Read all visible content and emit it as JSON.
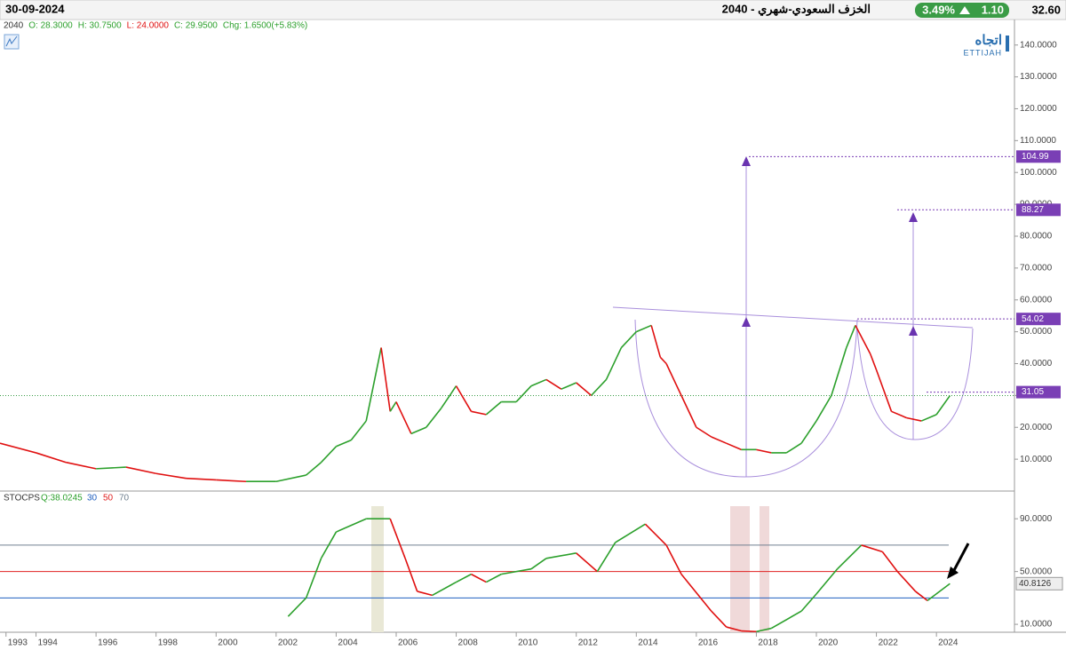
{
  "header": {
    "date": "30-09-2024",
    "title": "الخزف السعودي-شهري - 2040",
    "change_pct": "3.49%",
    "change": "1.10",
    "last": "32.60",
    "ohlc": [
      "2040",
      "O: 28.3000",
      "H: 30.7500",
      "L: 24.0000",
      "C: 29.9500",
      "Chg: 1.6500(+5.83%)"
    ],
    "logo": "اتجاه",
    "logo_sub": "ETTIJAH"
  },
  "chart_data": [
    {
      "type": "line",
      "name": "price",
      "x": [
        1992.8,
        1994,
        1995,
        1996,
        1997,
        1998,
        1999,
        2000,
        2001,
        2002,
        2003,
        2003.5,
        2004,
        2004.5,
        2005,
        2005.5,
        2005.8,
        2006,
        2006.5,
        2007,
        2007.5,
        2008,
        2008.5,
        2009,
        2009.5,
        2010,
        2010.5,
        2011,
        2011.5,
        2012,
        2012.5,
        2013,
        2013.5,
        2014,
        2014.5,
        2014.8,
        2015,
        2015.5,
        2016,
        2016.5,
        2017,
        2017.5,
        2018,
        2018.5,
        2019,
        2019.5,
        2020,
        2020.5,
        2021,
        2021.3,
        2021.8,
        2022,
        2022.5,
        2023,
        2023.5,
        2024,
        2024.45
      ],
      "values": [
        15,
        12,
        9,
        7,
        7.5,
        5.5,
        4,
        3.5,
        3,
        3,
        5,
        9,
        14,
        16,
        22,
        45,
        25,
        28,
        18,
        20,
        26,
        33,
        25,
        24,
        28,
        28,
        33,
        35,
        32,
        34,
        30,
        35,
        45,
        50,
        52,
        42,
        40,
        30,
        20,
        17,
        15,
        13,
        13,
        12,
        12,
        15,
        22,
        30,
        45,
        52,
        43,
        38,
        25,
        23,
        22,
        24,
        29.95
      ],
      "color_up": "#2ca02c",
      "color_down": "#e01010",
      "xlim": [
        1992.8,
        2026.6
      ],
      "ylim": [
        0,
        148
      ],
      "yticks": [
        {
          "value": 10,
          "label": "10.0000"
        },
        {
          "value": 20,
          "label": "20.0000"
        },
        {
          "value": 30,
          "label": "30.0000"
        },
        {
          "value": 40,
          "label": "40.0000"
        },
        {
          "value": 50,
          "label": "50.0000"
        },
        {
          "value": 60,
          "label": "60.0000"
        },
        {
          "value": 70,
          "label": "70.0000"
        },
        {
          "value": 80,
          "label": "80.0000"
        },
        {
          "value": 90,
          "label": "90.0000"
        },
        {
          "value": 100,
          "label": "100.0000"
        },
        {
          "value": 110,
          "label": "110.0000"
        },
        {
          "value": 120,
          "label": "120.0000"
        },
        {
          "value": 130,
          "label": "130.0000"
        },
        {
          "value": 140,
          "label": "140.0000"
        }
      ],
      "levels": [
        {
          "value": 104.99,
          "label": "104.99"
        },
        {
          "value": 88.27,
          "label": "88.27"
        },
        {
          "value": 54.02,
          "label": "54.02"
        },
        {
          "value": 31.05,
          "label": "31.05"
        }
      ],
      "level_color": "#7a3fb5"
    },
    {
      "type": "line",
      "name": "STOCPS",
      "legend": "STOCPS",
      "q_label": "Q:38.0245",
      "x": [
        2002.4,
        2003,
        2003.5,
        2004,
        2005,
        2005.8,
        2006.3,
        2006.7,
        2007.2,
        2008,
        2008.5,
        2009,
        2009.5,
        2010.5,
        2011,
        2012,
        2012.7,
        2013.3,
        2014.3,
        2015,
        2015.5,
        2016.5,
        2017,
        2017.5,
        2018,
        2018.5,
        2019.5,
        2020,
        2020.7,
        2021.5,
        2022.2,
        2022.7,
        2023.3,
        2023.7,
        2024.45
      ],
      "values": [
        16,
        30,
        60,
        80,
        90,
        90,
        60,
        35,
        32,
        42,
        48,
        42,
        48,
        52,
        60,
        64,
        50,
        72,
        86,
        70,
        48,
        20,
        8,
        5,
        4.5,
        7,
        20,
        33,
        52,
        70,
        65,
        50,
        35,
        28,
        40.8126
      ],
      "value_label": "40.8126",
      "color_up": "#2ca02c",
      "color_down": "#e01010",
      "xlim": [
        1992.8,
        2026.6
      ],
      "ylim": [
        4,
        111
      ],
      "yticks": [
        {
          "value": 10,
          "label": "10.0000"
        },
        {
          "value": 50,
          "label": "50.0000"
        },
        {
          "value": 90,
          "label": "90.0000"
        }
      ],
      "levels": [
        {
          "value": 30,
          "color": "#1f5fbf"
        },
        {
          "value": 50,
          "color": "#e02020"
        },
        {
          "value": 70,
          "color": "#708090"
        }
      ],
      "xticks": [
        1993,
        1994,
        1996,
        1998,
        2000,
        2002,
        2004,
        2006,
        2008,
        2010,
        2012,
        2014,
        2016,
        2018,
        2020,
        2022,
        2024
      ]
    }
  ]
}
